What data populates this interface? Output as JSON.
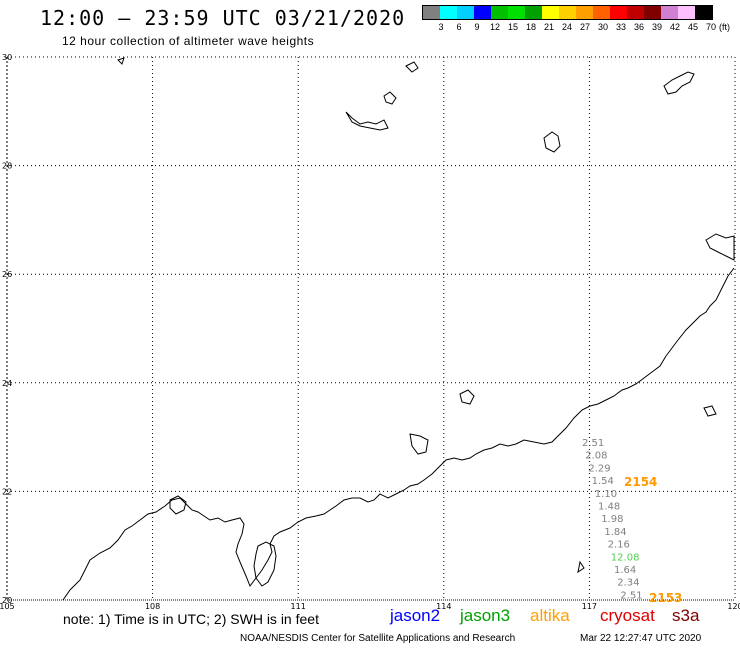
{
  "header": {
    "title": "12:00 – 23:59 UTC 03/21/2020",
    "subtitle": "12 hour collection of altimeter wave heights"
  },
  "legend": {
    "colors": [
      "#808080",
      "#00ffff",
      "#00d0ff",
      "#0000ff",
      "#00c000",
      "#00e000",
      "#00a000",
      "#ffff00",
      "#ffd000",
      "#ffa000",
      "#ff6000",
      "#ff0000",
      "#c00000",
      "#800000",
      "#d080d0",
      "#ffc0ff",
      "#000000"
    ],
    "labels": [
      "3",
      "6",
      "9",
      "12",
      "15",
      "18",
      "21",
      "24",
      "27",
      "30",
      "33",
      "36",
      "39",
      "42",
      "45",
      "70"
    ],
    "unit": "(ft)"
  },
  "map": {
    "lat_labels": [
      "30",
      "28",
      "26",
      "24",
      "22",
      "20"
    ],
    "lon_labels": [
      "105",
      "108",
      "111",
      "114",
      "117",
      "120"
    ],
    "lat_range": [
      20,
      30
    ],
    "lon_range": [
      105,
      120
    ],
    "grid": "dotted",
    "observations": [
      {
        "text": "2.51",
        "color": "#808080"
      },
      {
        "text": "2.08",
        "color": "#808080"
      },
      {
        "text": "2.29",
        "color": "#808080"
      },
      {
        "text": "1.54",
        "color": "#808080"
      },
      {
        "text": "1.10",
        "color": "#808080"
      },
      {
        "text": "1.48",
        "color": "#808080"
      },
      {
        "text": "1.98",
        "color": "#808080"
      },
      {
        "text": "1.84",
        "color": "#808080"
      },
      {
        "text": "2.16",
        "color": "#808080"
      },
      {
        "text": "12.08",
        "color": "#50d050"
      },
      {
        "text": "1.64",
        "color": "#808080"
      },
      {
        "text": "2.34",
        "color": "#808080"
      },
      {
        "text": "2.51",
        "color": "#808080"
      }
    ],
    "pass_times": [
      {
        "text": "2154",
        "color": "#ff9900"
      },
      {
        "text": "2153",
        "color": "#ff9900"
      }
    ]
  },
  "footer": {
    "note": "note: 1) Time is in UTC; 2) SWH is in feet",
    "satellites": [
      {
        "name": "jason2",
        "color": "#0000ff"
      },
      {
        "name": "jason3",
        "color": "#00a000"
      },
      {
        "name": "altika",
        "color": "#ffa000"
      },
      {
        "name": "cryosat",
        "color": "#e00000"
      },
      {
        "name": "s3a",
        "color": "#800000"
      }
    ],
    "credit": "NOAA/NESDIS Center for Satellite Applications and Research",
    "timestamp": "Mar 22 12:27:47 UTC 2020"
  }
}
